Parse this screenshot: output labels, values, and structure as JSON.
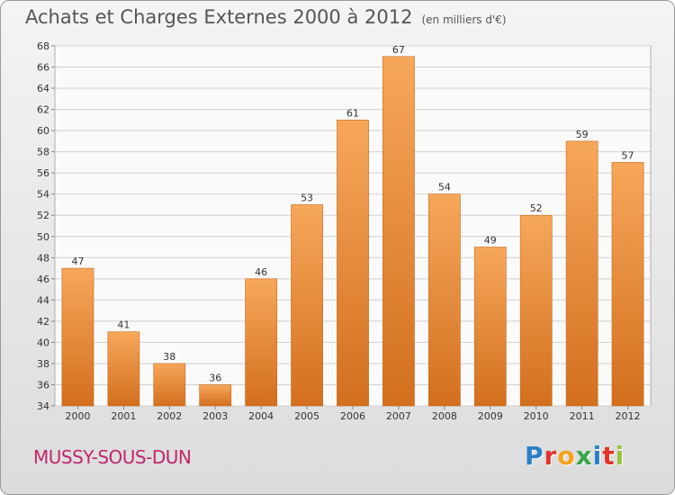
{
  "header": {
    "title": "Achats et Charges Externes 2000 à 2012",
    "subtitle": "(en milliers d'€)"
  },
  "footer": {
    "commune": "MUSSY-SOUS-DUN",
    "brand": "Proxiti",
    "brand_colors": [
      "#2a7fc9",
      "#e2342a",
      "#f6a21a",
      "#3aa64a",
      "#2a7fc9",
      "#e2342a",
      "#9ac23c"
    ]
  },
  "chart_data": {
    "type": "bar",
    "title": "Achats et Charges Externes 2000 à 2012",
    "subtitle": "(en milliers d'€)",
    "categories": [
      "2000",
      "2001",
      "2002",
      "2003",
      "2004",
      "2005",
      "2006",
      "2007",
      "2008",
      "2009",
      "2010",
      "2011",
      "2012"
    ],
    "values": [
      47,
      41,
      38,
      36,
      46,
      53,
      61,
      67,
      54,
      49,
      52,
      59,
      57
    ],
    "ylim": [
      34,
      68
    ],
    "yticks": [
      34,
      36,
      38,
      40,
      42,
      44,
      46,
      48,
      50,
      52,
      54,
      56,
      58,
      60,
      62,
      64,
      66,
      68
    ],
    "grid": true,
    "bar_color_top": "#f7a75a",
    "bar_color_bottom": "#d26f1e"
  }
}
